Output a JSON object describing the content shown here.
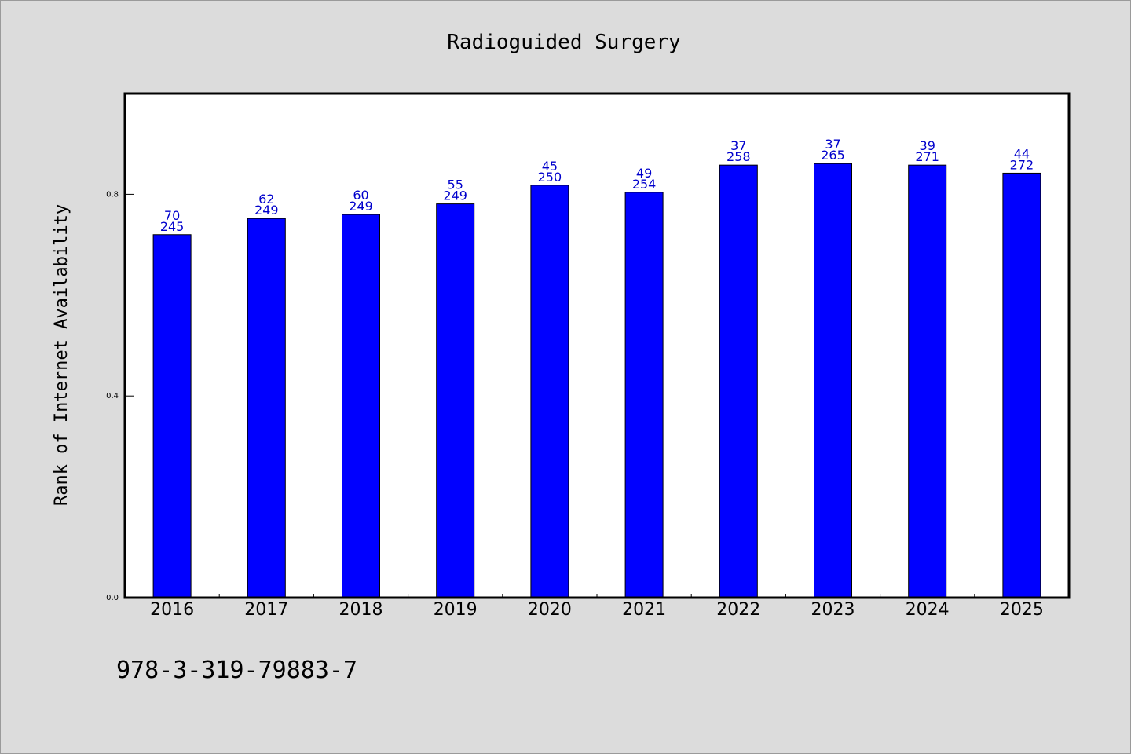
{
  "chart_data": {
    "type": "bar",
    "title": "Radioguided Surgery",
    "xlabel": "",
    "ylabel": "Rank of Internet Availability",
    "categories": [
      "2016",
      "2017",
      "2018",
      "2019",
      "2020",
      "2021",
      "2022",
      "2023",
      "2024",
      "2025"
    ],
    "values": [
      0.72,
      0.752,
      0.76,
      0.781,
      0.818,
      0.804,
      0.858,
      0.861,
      0.858,
      0.842
    ],
    "bar_labels_top": [
      "70",
      "62",
      "60",
      "55",
      "45",
      "49",
      "37",
      "37",
      "39",
      "44"
    ],
    "bar_labels_bottom": [
      "245",
      "249",
      "249",
      "249",
      "250",
      "254",
      "258",
      "265",
      "271",
      "272"
    ],
    "ylim": [
      0,
      1.0
    ],
    "yticks": [
      0.0,
      0.4,
      0.8
    ],
    "ytick_labels": [
      "0.0",
      "0.4",
      "0.8"
    ],
    "grid": false,
    "colors": {
      "bar": "#0000ff",
      "bar_label": "#0000cc",
      "background": "#dcdcdc",
      "plot_background": "#ffffff"
    }
  },
  "footer": {
    "isbn": "978-3-319-79883-7"
  }
}
